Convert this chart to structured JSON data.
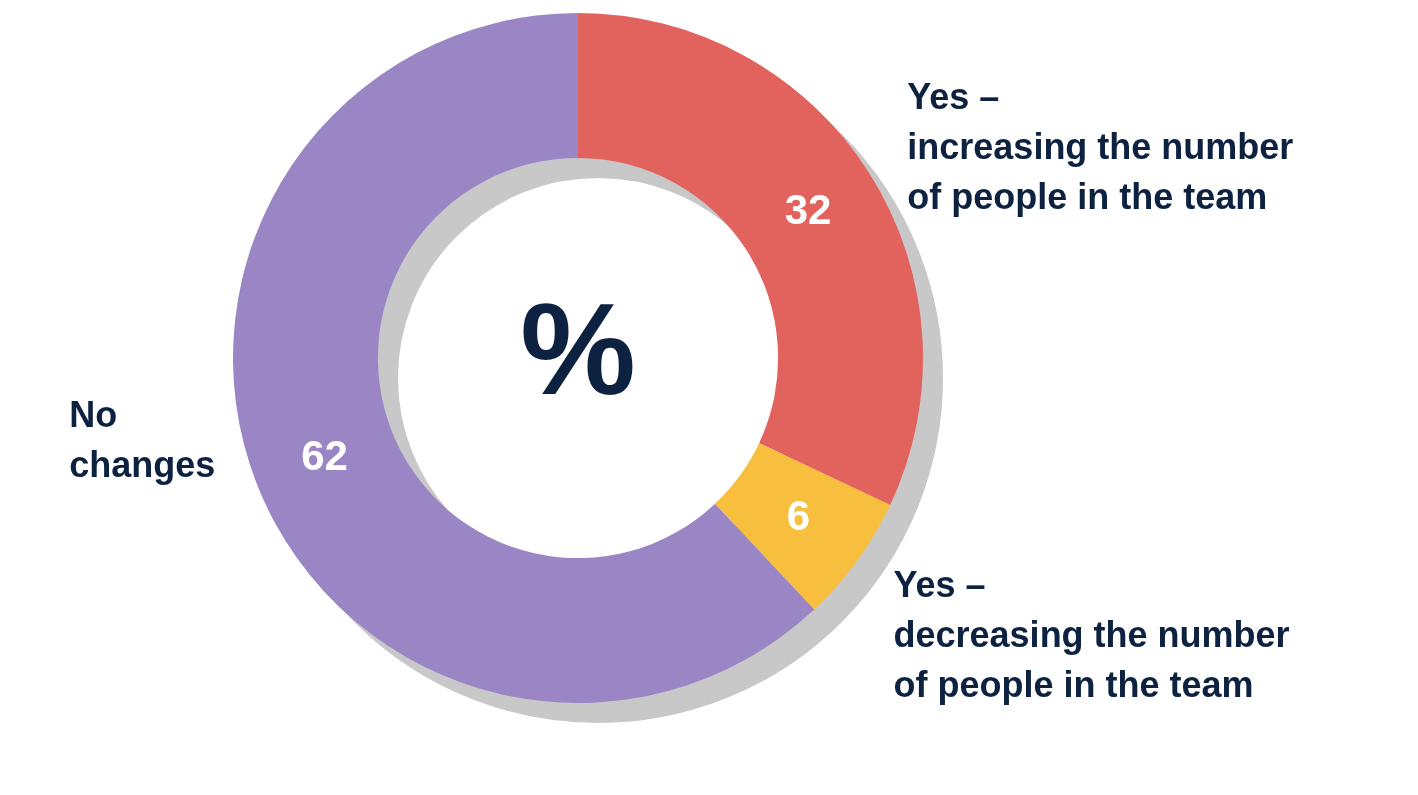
{
  "chart_data": {
    "type": "donut",
    "categories": [
      "Yes –\nincreasing the number\nof people in the team",
      "Yes –\ndecreasing the number\nof people in the team",
      "No\nchanges"
    ],
    "values": [
      32,
      6,
      62
    ],
    "colors": [
      "#e2635d",
      "#f8be3e",
      "#9a86c4"
    ],
    "data_labels": true,
    "annotations": [
      "%"
    ]
  }
}
